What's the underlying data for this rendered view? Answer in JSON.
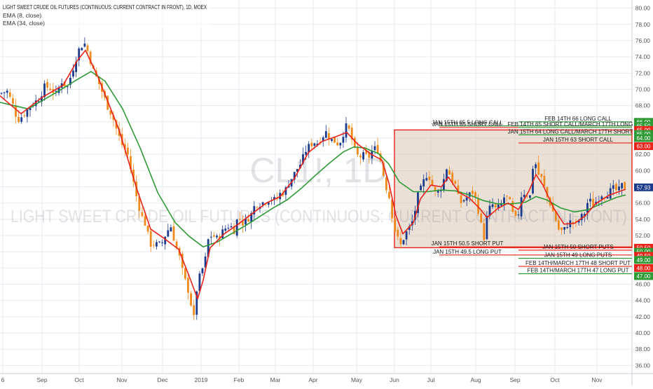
{
  "header": {
    "title": "LIGHT SWEET CRUDE OIL FUTURES (CONTINUOUS: CURRENT CONTRACT IN FRONT), 1D, MOEX",
    "indicators": [
      "EMA (8, close)",
      "EMA (34, close)"
    ]
  },
  "watermark": {
    "symbol": "CL1!, 1D",
    "name": "LIGHT SWEET CRUDE OIL FUTURES (CONTINUOUS: CURRENT CONTRACT IN FRONT)"
  },
  "colors": {
    "background": "#ffffff",
    "grid": "#e6e9ef",
    "up_candle": "#1b3a8c",
    "down_candle": "#f08a1c",
    "ema_fast": "#e8231a",
    "ema_slow": "#2e9a36",
    "box_fill": "#d9c7b4",
    "box_border": "#e8231a",
    "call_line": "#2e9a36",
    "put_line": "#e8231a"
  },
  "chart_data": {
    "type": "candlestick",
    "ylim": [
      35,
      81
    ],
    "y_ticks": [
      "36.00",
      "38.00",
      "40.00",
      "42.00",
      "44.00",
      "46.00",
      "48.00",
      "50.00",
      "52.00",
      "54.00",
      "56.00",
      "58.00",
      "60.00",
      "62.00",
      "64.00",
      "66.00",
      "68.00",
      "70.00",
      "72.00",
      "74.00",
      "76.00",
      "78.00",
      "80.00"
    ],
    "x_ticks": [
      "6",
      "Sep",
      "Oct",
      "Nov",
      "Dec",
      "2019",
      "Feb",
      "Mar",
      "Apr",
      "May",
      "Jun",
      "Jul",
      "Aug",
      "Sep",
      "Oct",
      "Nov"
    ],
    "price_path": [
      [
        0,
        69.5
      ],
      [
        10,
        69.8
      ],
      [
        18,
        68.2
      ],
      [
        25,
        66.2
      ],
      [
        33,
        66.8
      ],
      [
        40,
        67.6
      ],
      [
        48,
        68.3
      ],
      [
        56,
        68.9
      ],
      [
        64,
        70.4
      ],
      [
        72,
        70.1
      ],
      [
        80,
        69.4
      ],
      [
        88,
        71.0
      ],
      [
        96,
        70.2
      ],
      [
        104,
        72.5
      ],
      [
        112,
        74.8
      ],
      [
        120,
        75.8
      ],
      [
        126,
        74.5
      ],
      [
        133,
        72.3
      ],
      [
        140,
        71.0
      ],
      [
        147,
        69.4
      ],
      [
        154,
        67.8
      ],
      [
        160,
        66.8
      ],
      [
        168,
        64.6
      ],
      [
        175,
        63.0
      ],
      [
        182,
        62.1
      ],
      [
        188,
        59.6
      ],
      [
        195,
        56.7
      ],
      [
        202,
        54.4
      ],
      [
        208,
        53.3
      ],
      [
        214,
        50.9
      ],
      [
        220,
        51.0
      ],
      [
        226,
        50.8
      ],
      [
        232,
        51.2
      ],
      [
        238,
        52.5
      ],
      [
        244,
        53.1
      ],
      [
        250,
        51.0
      ],
      [
        256,
        49.4
      ],
      [
        262,
        47.0
      ],
      [
        268,
        45.5
      ],
      [
        273,
        43.4
      ],
      [
        277,
        41.7
      ],
      [
        281,
        45.5
      ],
      [
        286,
        47.3
      ],
      [
        292,
        48.5
      ],
      [
        298,
        51.9
      ],
      [
        304,
        52.0
      ],
      [
        310,
        51.6
      ],
      [
        316,
        52.3
      ],
      [
        322,
        52.9
      ],
      [
        328,
        53.3
      ],
      [
        334,
        52.6
      ],
      [
        340,
        54.4
      ],
      [
        346,
        53.5
      ],
      [
        352,
        53.9
      ],
      [
        358,
        54.5
      ],
      [
        364,
        55.8
      ],
      [
        370,
        55.9
      ],
      [
        376,
        56.1
      ],
      [
        382,
        56.4
      ],
      [
        388,
        56.5
      ],
      [
        394,
        56.3
      ],
      [
        400,
        57.2
      ],
      [
        406,
        57.3
      ],
      [
        412,
        58.5
      ],
      [
        418,
        59.3
      ],
      [
        424,
        60.2
      ],
      [
        430,
        61.0
      ],
      [
        436,
        62.4
      ],
      [
        442,
        63.1
      ],
      [
        448,
        63.5
      ],
      [
        454,
        63.4
      ],
      [
        460,
        64.2
      ],
      [
        466,
        64.8
      ],
      [
        472,
        63.8
      ],
      [
        478,
        63.6
      ],
      [
        484,
        63.2
      ],
      [
        490,
        64.6
      ],
      [
        494,
        65.4
      ],
      [
        498,
        65.0
      ],
      [
        502,
        63.9
      ],
      [
        508,
        61.9
      ],
      [
        514,
        61.7
      ],
      [
        520,
        61.9
      ],
      [
        526,
        61.6
      ],
      [
        532,
        62.5
      ],
      [
        538,
        62.9
      ],
      [
        544,
        60.9
      ],
      [
        550,
        58.3
      ],
      [
        556,
        56.6
      ],
      [
        562,
        53.1
      ],
      [
        568,
        51.5
      ],
      [
        572,
        50.8
      ],
      [
        578,
        52.1
      ],
      [
        584,
        52.9
      ],
      [
        590,
        54.0
      ],
      [
        596,
        56.8
      ],
      [
        602,
        58.0
      ],
      [
        608,
        59.5
      ],
      [
        614,
        59.1
      ],
      [
        620,
        57.3
      ],
      [
        626,
        57.4
      ],
      [
        632,
        58.4
      ],
      [
        638,
        60.5
      ],
      [
        644,
        59.0
      ],
      [
        650,
        58.2
      ],
      [
        656,
        55.9
      ],
      [
        662,
        56.4
      ],
      [
        668,
        56.8
      ],
      [
        674,
        57.4
      ],
      [
        680,
        56.2
      ],
      [
        686,
        53.7
      ],
      [
        690,
        51.3
      ],
      [
        696,
        54.8
      ],
      [
        702,
        55.9
      ],
      [
        708,
        55.2
      ],
      [
        714,
        55.6
      ],
      [
        720,
        56.8
      ],
      [
        726,
        56.6
      ],
      [
        732,
        54.6
      ],
      [
        738,
        53.7
      ],
      [
        744,
        56.9
      ],
      [
        750,
        57.4
      ],
      [
        756,
        56.5
      ],
      [
        762,
        61.7
      ],
      [
        768,
        59.6
      ],
      [
        774,
        58.9
      ],
      [
        780,
        56.9
      ],
      [
        786,
        55.8
      ],
      [
        792,
        54.2
      ],
      [
        798,
        52.6
      ],
      [
        804,
        52.5
      ],
      [
        810,
        53.4
      ],
      [
        816,
        53.8
      ],
      [
        822,
        53.4
      ],
      [
        828,
        54.1
      ],
      [
        834,
        54.7
      ],
      [
        840,
        56.5
      ],
      [
        846,
        55.8
      ],
      [
        852,
        56.3
      ],
      [
        858,
        57.1
      ],
      [
        864,
        57.0
      ],
      [
        870,
        57.4
      ],
      [
        876,
        57.8
      ],
      [
        882,
        57.4
      ],
      [
        888,
        58.2
      ],
      [
        893,
        57.9
      ]
    ],
    "ema_fast": [
      [
        0,
        69.2
      ],
      [
        30,
        67.0
      ],
      [
        60,
        69.0
      ],
      [
        90,
        70.5
      ],
      [
        110,
        73.5
      ],
      [
        122,
        74.8
      ],
      [
        140,
        71.5
      ],
      [
        170,
        65.0
      ],
      [
        195,
        57.8
      ],
      [
        215,
        52.8
      ],
      [
        235,
        51.6
      ],
      [
        255,
        50.3
      ],
      [
        270,
        47.0
      ],
      [
        282,
        44.2
      ],
      [
        290,
        46.5
      ],
      [
        300,
        50.5
      ],
      [
        320,
        52.2
      ],
      [
        340,
        53.4
      ],
      [
        360,
        54.7
      ],
      [
        380,
        56.0
      ],
      [
        400,
        56.8
      ],
      [
        420,
        59.0
      ],
      [
        440,
        62.2
      ],
      [
        460,
        63.6
      ],
      [
        480,
        64.2
      ],
      [
        495,
        64.7
      ],
      [
        510,
        63.3
      ],
      [
        530,
        62.0
      ],
      [
        545,
        61.3
      ],
      [
        555,
        58.5
      ],
      [
        565,
        54.5
      ],
      [
        575,
        52.2
      ],
      [
        590,
        53.6
      ],
      [
        600,
        56.5
      ],
      [
        615,
        58.2
      ],
      [
        630,
        58.0
      ],
      [
        640,
        59.2
      ],
      [
        655,
        57.3
      ],
      [
        670,
        56.6
      ],
      [
        685,
        55.3
      ],
      [
        695,
        54.2
      ],
      [
        710,
        55.3
      ],
      [
        725,
        56.0
      ],
      [
        740,
        55.2
      ],
      [
        755,
        57.5
      ],
      [
        765,
        59.5
      ],
      [
        775,
        58.2
      ],
      [
        790,
        55.4
      ],
      [
        805,
        53.4
      ],
      [
        820,
        53.5
      ],
      [
        835,
        54.4
      ],
      [
        850,
        55.9
      ],
      [
        870,
        57.0
      ],
      [
        893,
        57.7
      ]
    ],
    "ema_slow": [
      [
        0,
        68.4
      ],
      [
        40,
        67.6
      ],
      [
        80,
        69.6
      ],
      [
        110,
        71.2
      ],
      [
        130,
        72.2
      ],
      [
        150,
        71.0
      ],
      [
        175,
        67.6
      ],
      [
        200,
        62.8
      ],
      [
        225,
        57.3
      ],
      [
        250,
        53.6
      ],
      [
        270,
        51.9
      ],
      [
        290,
        50.6
      ],
      [
        310,
        51.2
      ],
      [
        330,
        52.2
      ],
      [
        350,
        53.2
      ],
      [
        370,
        54.3
      ],
      [
        390,
        55.4
      ],
      [
        410,
        56.4
      ],
      [
        430,
        57.8
      ],
      [
        450,
        59.4
      ],
      [
        470,
        60.9
      ],
      [
        490,
        62.3
      ],
      [
        505,
        62.9
      ],
      [
        520,
        62.8
      ],
      [
        540,
        62.1
      ],
      [
        555,
        60.8
      ],
      [
        570,
        58.6
      ],
      [
        590,
        57.4
      ],
      [
        610,
        57.4
      ],
      [
        630,
        57.6
      ],
      [
        650,
        57.5
      ],
      [
        670,
        57.0
      ],
      [
        690,
        56.3
      ],
      [
        710,
        55.9
      ],
      [
        730,
        55.9
      ],
      [
        750,
        56.1
      ],
      [
        765,
        56.8
      ],
      [
        780,
        56.4
      ],
      [
        800,
        55.4
      ],
      [
        820,
        54.9
      ],
      [
        840,
        55.2
      ],
      [
        860,
        56.0
      ],
      [
        880,
        56.7
      ],
      [
        893,
        57.0
      ]
    ],
    "box": {
      "x_start": 563,
      "x_end": 902,
      "y_top": 65.0,
      "y_bottom": 50.5
    },
    "last_price": "57.93",
    "annotations": [
      {
        "label": "FEB 14TH 66 LONG CALL",
        "price": 66.0,
        "kind": "call",
        "x0": 740,
        "text_x": 825
      },
      {
        "label": "JAN 15TH 65.5 LONG CALL",
        "price": 65.5,
        "kind": "call",
        "x0": 627,
        "text_x": 667
      },
      {
        "label": "JAN 15TH 65 SHORT CALL",
        "price": 65.3,
        "kind": "put",
        "x0": 627,
        "text_x": 667
      },
      {
        "label": "FEB 14TH 65 SHORT CALL/MARCH 17TH LONG CALL",
        "price": 65.3,
        "kind": "call",
        "x0": 740,
        "text_x": 825
      },
      {
        "label": "JAN 15TH 64 LONG CALL/MARCH 17TH SHORT CALL",
        "price": 64.4,
        "kind": "call",
        "x0": 740,
        "text_x": 825
      },
      {
        "label": "JAN 15TH 63 SHORT CALL",
        "price": 63.4,
        "kind": "put",
        "x0": 740,
        "text_x": 825
      },
      {
        "label": "JAN 15TH 50.5 SHORT PUT",
        "price": 50.6,
        "kind": "put",
        "x0": 627,
        "text_x": 667
      },
      {
        "label": "JAN 15TH 49.5 LONG PUT",
        "price": 49.6,
        "kind": "put",
        "x0": 627,
        "text_x": 667
      },
      {
        "label": "JAN 15TH 50 SHORT PUTS",
        "price": 50.2,
        "kind": "put",
        "x0": 740,
        "text_x": 825
      },
      {
        "label": "JAN 15TH 49 LONG PUTS",
        "price": 49.2,
        "kind": "call",
        "x0": 740,
        "text_x": 825
      },
      {
        "label": "FEB 14TH/MARCH 17TH 48 SHORT PUT",
        "price": 48.2,
        "kind": "put",
        "x0": 740,
        "text_x": 825
      },
      {
        "label": "FEB 14TH/MARCH 17TH 47 LONG PUT",
        "price": 47.3,
        "kind": "call",
        "x0": 740,
        "text_x": 825
      }
    ],
    "price_labels": [
      {
        "value": "66.00",
        "price": 66.0,
        "color": "#2e9a36"
      },
      {
        "value": "65.50",
        "price": 65.5,
        "color": "#2e9a36"
      },
      {
        "value": "65.00",
        "price": 65.0,
        "color": "#e8231a"
      },
      {
        "value": "65.00",
        "price": 64.5,
        "color": "#2e9a36"
      },
      {
        "value": "63.00",
        "price": 63.0,
        "color": "#e8231a"
      },
      {
        "value": "64.00",
        "price": 64.0,
        "color": "#2e9a36"
      },
      {
        "value": "57.93",
        "price": 57.93,
        "color": "#1b3a8c"
      },
      {
        "value": "50.50",
        "price": 50.5,
        "color": "#e8231a"
      },
      {
        "value": "50.00",
        "price": 50.0,
        "color": "#2e9a36"
      },
      {
        "value": "49.50",
        "price": 49.5,
        "color": "#e8231a"
      },
      {
        "value": "49.00",
        "price": 49.0,
        "color": "#2e9a36"
      },
      {
        "value": "48.00",
        "price": 48.0,
        "color": "#e8231a"
      },
      {
        "value": "47.00",
        "price": 47.0,
        "color": "#2e9a36"
      }
    ]
  }
}
